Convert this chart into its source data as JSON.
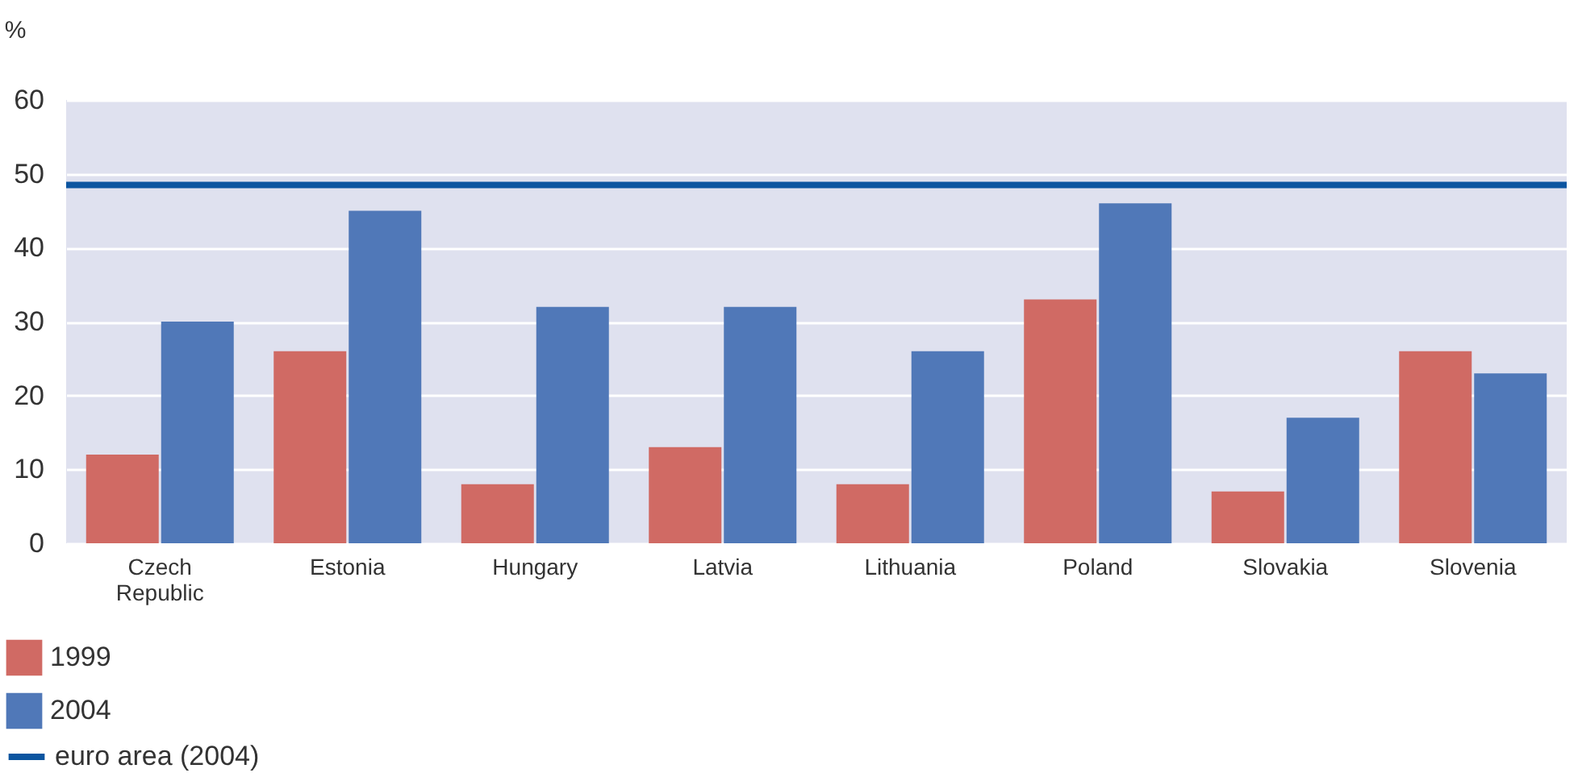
{
  "chart_data": {
    "type": "bar",
    "ylabel": "%",
    "categories": [
      "Czech Republic",
      "Estonia",
      "Hungary",
      "Latvia",
      "Lithuania",
      "Poland",
      "Slovakia",
      "Slovenia"
    ],
    "series": [
      {
        "name": "1999",
        "color": "#d06a64",
        "values": [
          12,
          26,
          8,
          13,
          8,
          33,
          7,
          26
        ]
      },
      {
        "name": "2004",
        "color": "#5078b8",
        "values": [
          30,
          45,
          32,
          32,
          26,
          46,
          17,
          23
        ]
      }
    ],
    "ref_lines": [
      {
        "axis": "y",
        "value": 48.5,
        "label": "euro area (2004)",
        "color": "#0c55a0",
        "line_style": "solid"
      }
    ],
    "ylim": [
      0,
      60
    ],
    "yticks": [
      0,
      10,
      20,
      30,
      40,
      50,
      60
    ],
    "grid": "y",
    "legend": "bottom left"
  }
}
